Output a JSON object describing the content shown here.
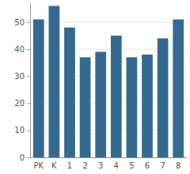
{
  "chart_data": {
    "type": "bar",
    "categories": [
      "PK",
      "K",
      "1",
      "2",
      "3",
      "4",
      "5",
      "6",
      "7",
      "8"
    ],
    "values": [
      51,
      56,
      48,
      37,
      39,
      45,
      37,
      38,
      44,
      51
    ],
    "color": "#346a8f",
    "ylim": [
      0,
      57
    ],
    "yticks": [
      0,
      10,
      20,
      30,
      40,
      50
    ],
    "grid": true
  }
}
